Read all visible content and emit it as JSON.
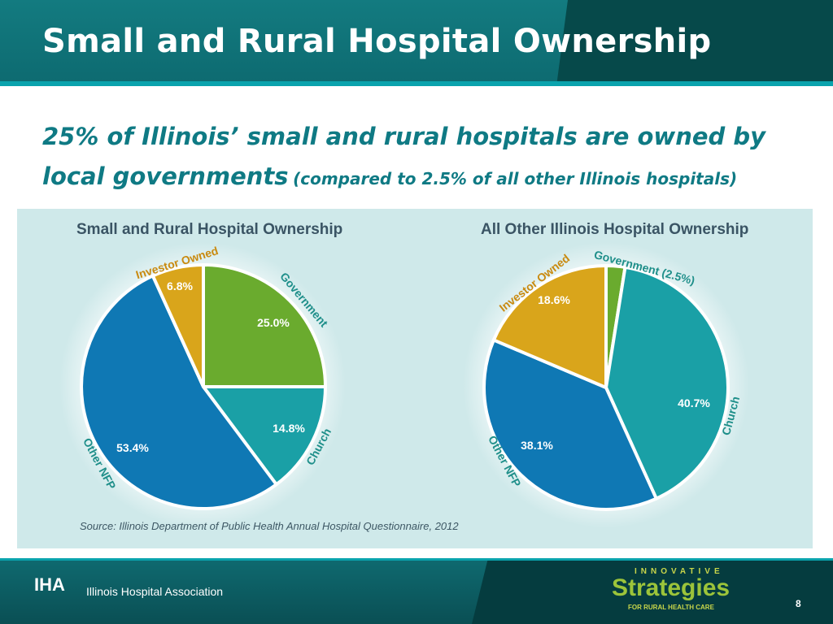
{
  "slide": {
    "title": "Small and Rural Hospital Ownership",
    "subtitle_main": "25% of Illinois’ small and rural hospitals are owned by local governments",
    "subtitle_note": "(compared to 2.5% of all other Illinois hospitals)",
    "source": "Source: Illinois Department of Public Health Annual Hospital Questionnaire, 2012",
    "page_number": "8"
  },
  "footer": {
    "org_abbrev": "IHA",
    "org_name": "Illinois Hospital Association",
    "logo_top": "INNOVATIVE",
    "logo_main": "Strategies",
    "logo_sub": "FOR RURAL HEALTH CARE"
  },
  "colors": {
    "government": "#6aab2e",
    "church": "#1aa0a6",
    "other_nfp": "#0f78b4",
    "investor_owned": "#d9a51b",
    "label": "#1f8f8a",
    "investor_label": "#c98a10"
  },
  "chart_data": [
    {
      "type": "pie",
      "title": "Small and Rural Hospital Ownership",
      "categories": [
        "Government",
        "Church",
        "Other NFP",
        "Investor Owned"
      ],
      "values": [
        25.0,
        14.8,
        53.4,
        6.8
      ],
      "value_labels": [
        "25.0%",
        "14.8%",
        "53.4%",
        "6.8%"
      ]
    },
    {
      "type": "pie",
      "title": "All Other Illinois Hospital Ownership",
      "categories": [
        "Government (2.5%)",
        "Church",
        "Other NFP",
        "Investor Owned"
      ],
      "values": [
        2.5,
        40.7,
        38.1,
        18.6
      ],
      "value_labels": [
        "",
        "40.7%",
        "38.1%",
        "18.6%"
      ]
    }
  ]
}
